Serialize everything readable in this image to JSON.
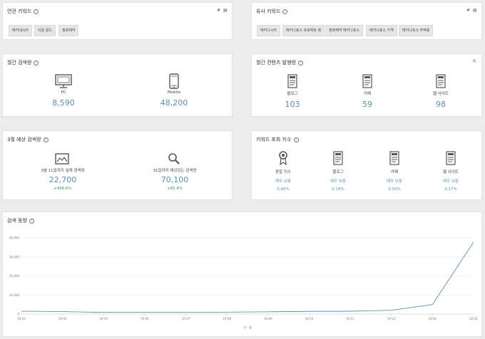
{
  "related": {
    "title": "연관 키워드",
    "tags": [
      "에키네시아",
      "이뮨 골드",
      "정화제약"
    ]
  },
  "similar": {
    "title": "유사 키워드",
    "tags": [
      "에키나시아",
      "에키나포스 프로텍트 정",
      "정화제약 에키나포스",
      "에키나포스 가격",
      "에키나포스 부작용"
    ]
  },
  "monthly_search": {
    "title": "월간 검색량",
    "items": [
      {
        "label": "PC",
        "value": "8,590"
      },
      {
        "label": "Mobile",
        "value": "48,200"
      }
    ]
  },
  "monthly_content": {
    "title": "월간 컨텐츠 발행량",
    "items": [
      {
        "label": "블로그",
        "value": "103"
      },
      {
        "label": "카페",
        "value": "59"
      },
      {
        "label": "웹 사이트",
        "value": "98"
      }
    ]
  },
  "forecast": {
    "title": "3월 예상 검색량",
    "items": [
      {
        "label": "3월 11일까지 실제 검색량",
        "value": "22,700",
        "change": "+466.6%"
      },
      {
        "label": "31일까지 예상되는 검색량",
        "value": "70,100",
        "change": "+85.4%"
      }
    ]
  },
  "saturation": {
    "title": "키워드 포화 지수",
    "items": [
      {
        "label": "종합 지수",
        "level": "매우 낮음",
        "ratio": "0.46%"
      },
      {
        "label": "블로그",
        "level": "매우 낮음",
        "ratio": "0.18%"
      },
      {
        "label": "카페",
        "level": "매우 낮음",
        "ratio": "0.10%"
      },
      {
        "label": "웹 사이트",
        "level": "매우 낮음",
        "ratio": "0.17%"
      }
    ]
  },
  "trend": {
    "title": "검색 동향",
    "xlabel": "년 - 월"
  },
  "chart_data": {
    "type": "line",
    "title": "검색 동향",
    "xlabel": "년 - 월",
    "ylabel": "",
    "categories": [
      "19-03",
      "19-04",
      "19-05",
      "19-06",
      "19-07",
      "19-08",
      "19-09",
      "19-10",
      "19-11",
      "19-12",
      "20-01",
      "20-02"
    ],
    "values": [
      1500,
      1300,
      900,
      900,
      900,
      1000,
      1200,
      1400,
      1500,
      2000,
      5000,
      37800
    ],
    "ylim": [
      0,
      40000
    ],
    "yticks": [
      "0",
      "10,000",
      "20,000",
      "30,000",
      "40,000"
    ],
    "grid": true,
    "color": "#5b8fb0"
  }
}
